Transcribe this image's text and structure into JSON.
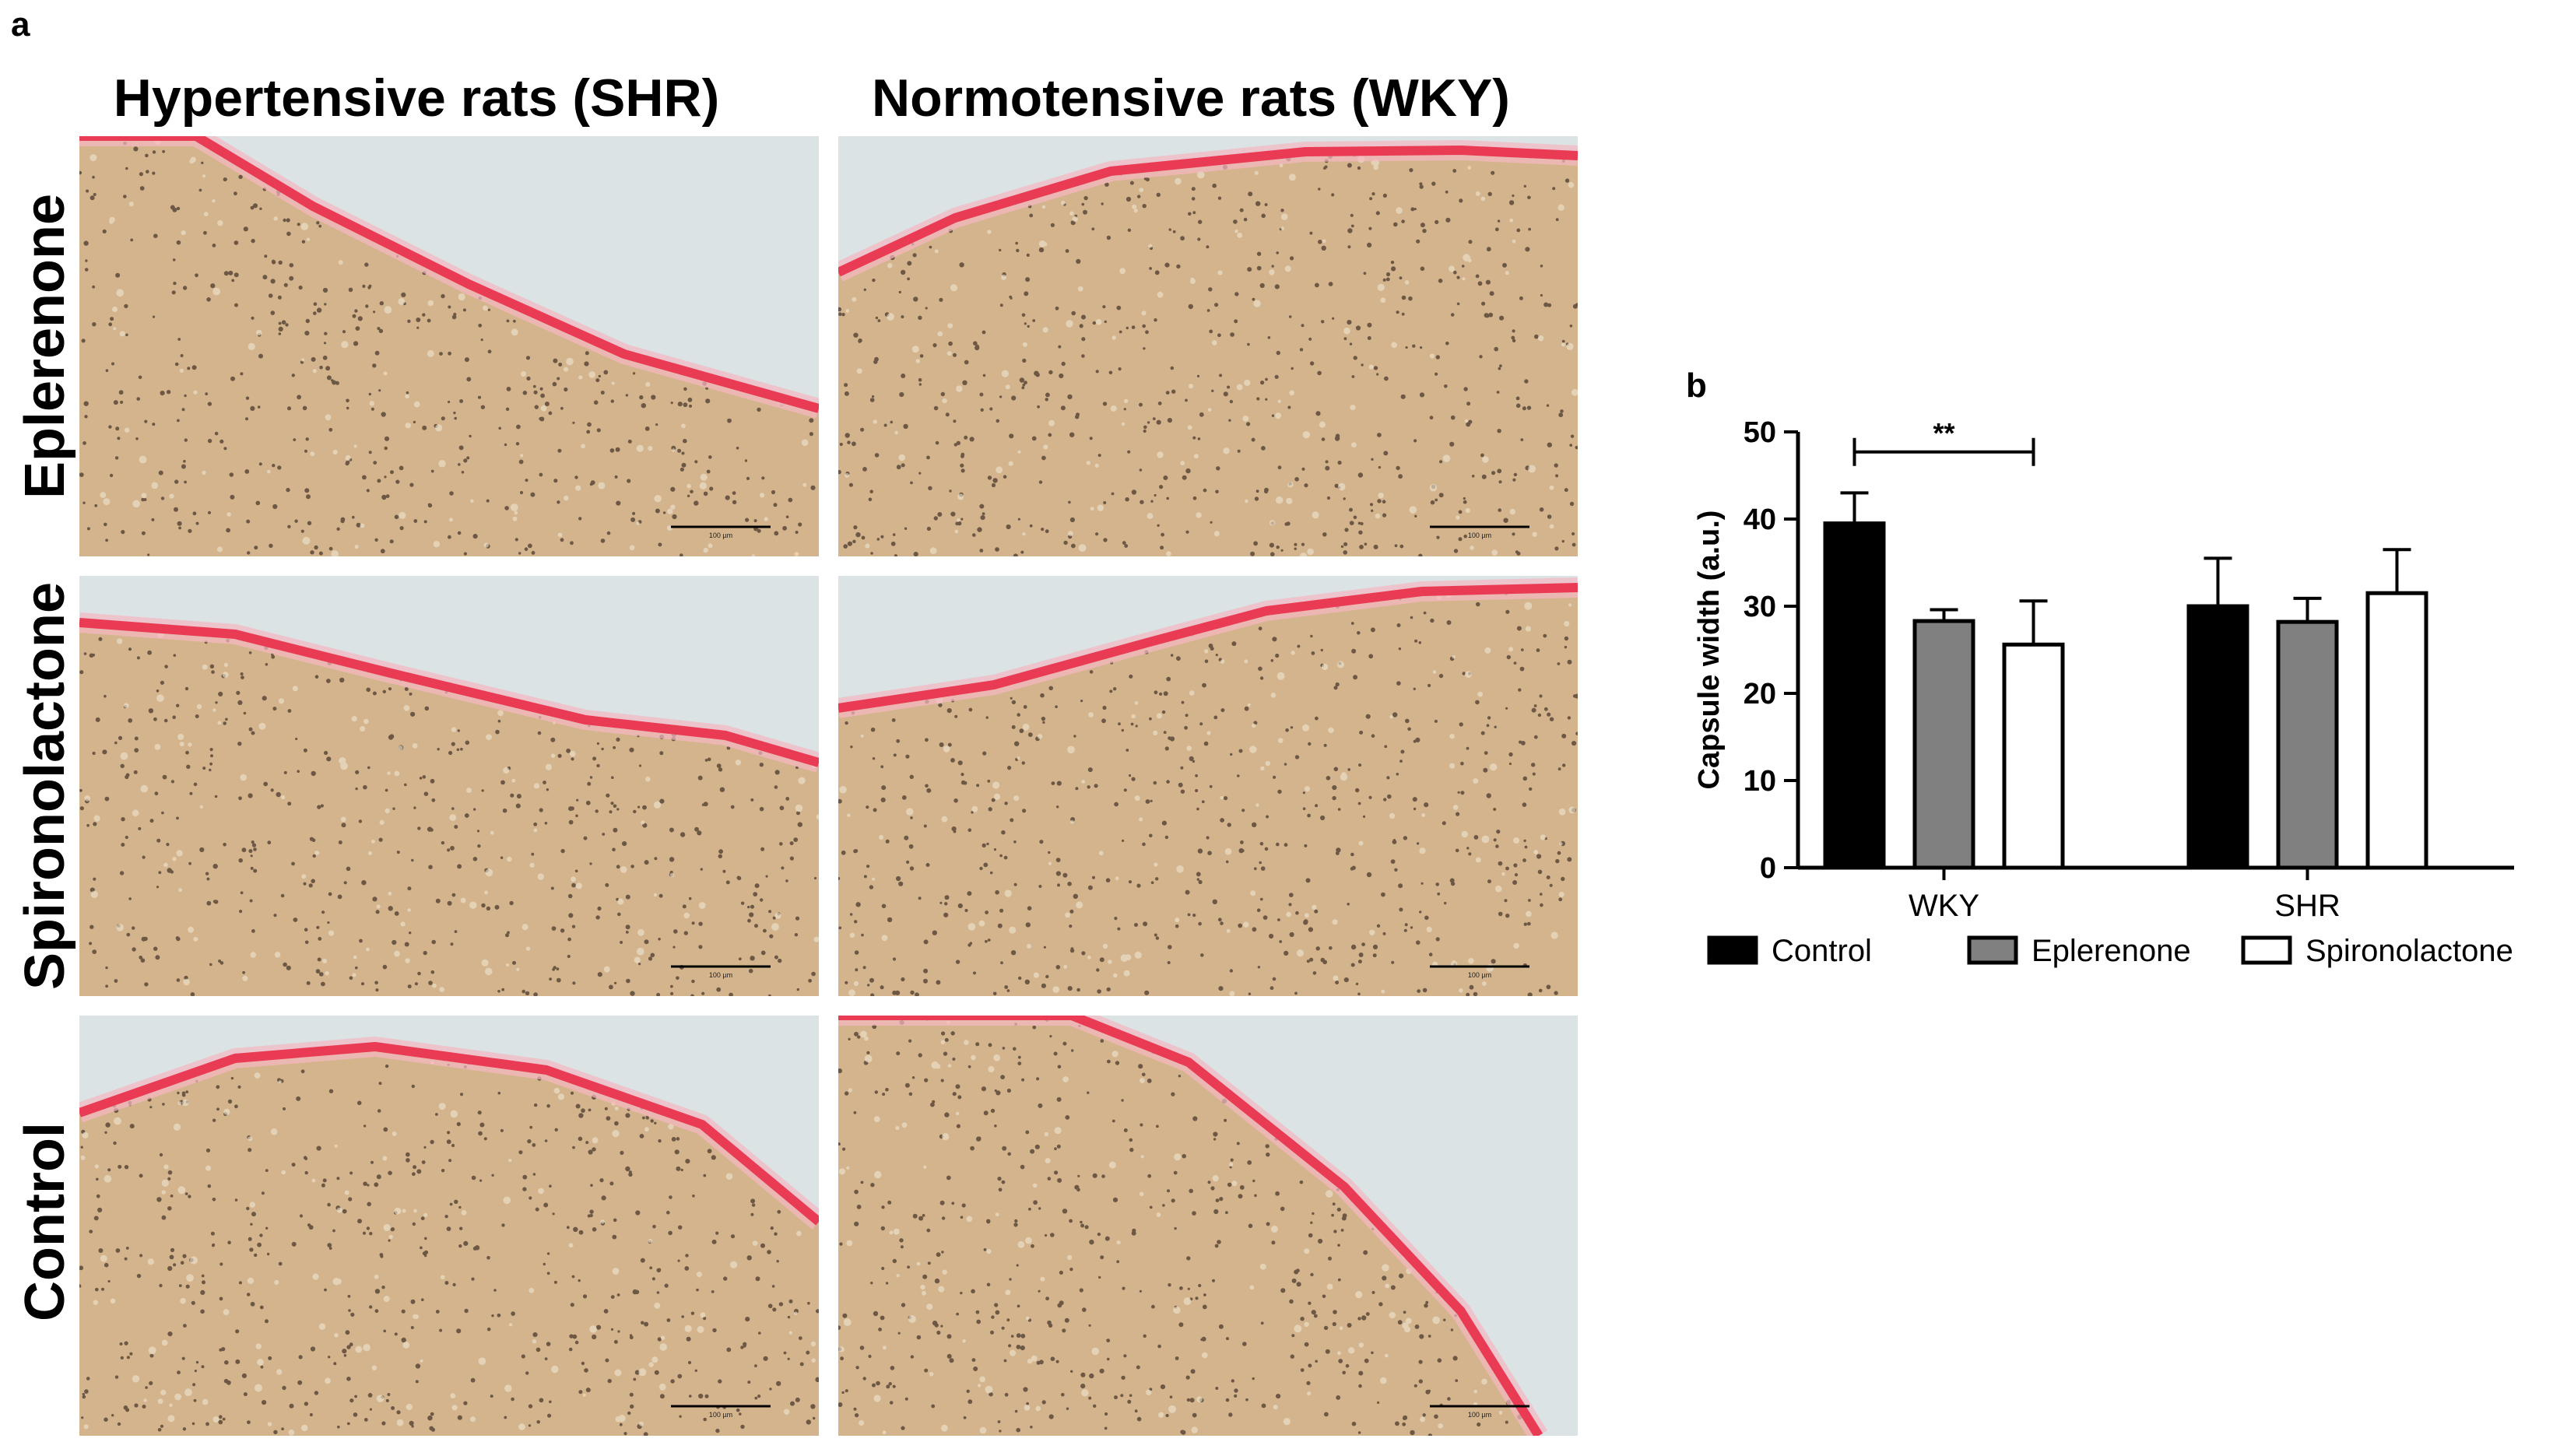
{
  "panel_a": {
    "label": "a",
    "columns": [
      "Hypertensive rats (SHR)",
      "Normotensive rats (WKY)"
    ],
    "rows": [
      "Eplerenone",
      "Spironolactone",
      "Control"
    ],
    "scale_bar_text": "100 µm"
  },
  "panel_b": {
    "label": "b"
  },
  "colors": {
    "tissue": "#d4b48c",
    "capsule": "#ea3b55",
    "background": "#dbe3e4",
    "control": "#000000",
    "eplerenone": "#808080",
    "spironolactone": "#ffffff"
  },
  "chart_data": {
    "type": "bar",
    "categories": [
      "WKY",
      "SHR"
    ],
    "series": [
      {
        "name": "Control",
        "values": [
          39.5,
          30.0
        ],
        "errors": [
          3.5,
          5.5
        ]
      },
      {
        "name": "Eplerenone",
        "values": [
          28.3,
          28.2
        ],
        "errors": [
          1.3,
          2.7
        ]
      },
      {
        "name": "Spironolactone",
        "values": [
          25.6,
          31.5
        ],
        "errors": [
          5.0,
          5.0
        ]
      }
    ],
    "title": "",
    "xlabel": "",
    "ylabel": "Capsule width (a.u.)",
    "ylim": [
      0,
      50
    ],
    "yticks": [
      0,
      10,
      20,
      30,
      40,
      50
    ],
    "legend": [
      "Control",
      "Eplerenone",
      "Spironolactone"
    ],
    "legend_position": "bottom",
    "significance": [
      {
        "category": "WKY",
        "from": "Control",
        "to": "Spironolactone",
        "label": "**"
      }
    ]
  }
}
